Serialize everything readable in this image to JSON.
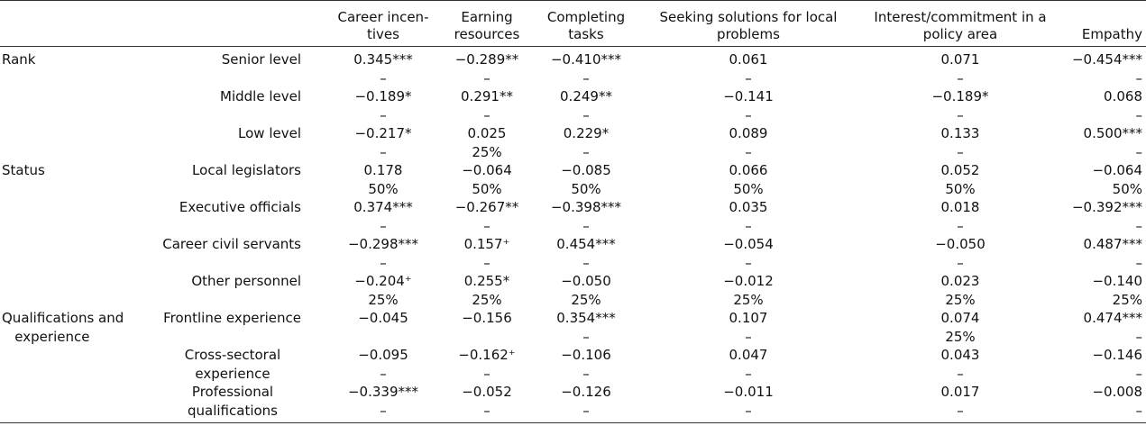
{
  "table": {
    "headers": [
      "",
      "",
      "Career incen-\ntives",
      "Earning\nresources",
      "Completing\ntasks",
      "Seeking solutions for local\nproblems",
      "Interest/commitment in a\npolicy area",
      "Empathy"
    ],
    "groups": [
      {
        "label": "Rank",
        "rows": [
          {
            "label": "Senior level",
            "cells": [
              [
                "0.345***",
                "–"
              ],
              [
                "−0.289**",
                "–"
              ],
              [
                "−0.410***",
                "–"
              ],
              [
                "0.061",
                "–"
              ],
              [
                "0.071",
                "–"
              ],
              [
                "−0.454***",
                "–"
              ]
            ]
          },
          {
            "label": "Middle level",
            "cells": [
              [
                "−0.189*",
                "–"
              ],
              [
                "0.291**",
                "–"
              ],
              [
                "0.249**",
                "–"
              ],
              [
                "−0.141",
                "–"
              ],
              [
                "−0.189*",
                "–"
              ],
              [
                "0.068",
                "–"
              ]
            ]
          },
          {
            "label": "Low level",
            "cells": [
              [
                "−0.217*",
                "–"
              ],
              [
                "0.025",
                "25%"
              ],
              [
                "0.229*",
                "–"
              ],
              [
                "0.089",
                "–"
              ],
              [
                "0.133",
                "–"
              ],
              [
                "0.500***",
                "–"
              ]
            ]
          }
        ]
      },
      {
        "label": "Status",
        "rows": [
          {
            "label": "Local legislators",
            "cells": [
              [
                "0.178",
                "50%"
              ],
              [
                "−0.064",
                "50%"
              ],
              [
                "−0.085",
                "50%"
              ],
              [
                "0.066",
                "50%"
              ],
              [
                "0.052",
                "50%"
              ],
              [
                "−0.064",
                "50%"
              ]
            ]
          },
          {
            "label": "Executive officials",
            "cells": [
              [
                "0.374***",
                "–"
              ],
              [
                "−0.267**",
                "–"
              ],
              [
                "−0.398***",
                "–"
              ],
              [
                "0.035",
                "–"
              ],
              [
                "0.018",
                "–"
              ],
              [
                "−0.392***",
                "–"
              ]
            ]
          },
          {
            "label": "Career civil servants",
            "cells": [
              [
                "−0.298***",
                "–"
              ],
              [
                "0.157⁺",
                "–"
              ],
              [
                "0.454***",
                "–"
              ],
              [
                "−0.054",
                "–"
              ],
              [
                "−0.050",
                "–"
              ],
              [
                "0.487***",
                "–"
              ]
            ]
          },
          {
            "label": "Other personnel",
            "cells": [
              [
                "−0.204⁺",
                "25%"
              ],
              [
                "0.255*",
                "25%"
              ],
              [
                "−0.050",
                "25%"
              ],
              [
                "−0.012",
                "25%"
              ],
              [
                "0.023",
                "25%"
              ],
              [
                "−0.140",
                "25%"
              ]
            ]
          }
        ]
      },
      {
        "label": "Qualifications and\n   experience",
        "rows": [
          {
            "label": "Frontline experience",
            "cells": [
              [
                "−0.045",
                ""
              ],
              [
                "−0.156",
                ""
              ],
              [
                "0.354***",
                "–"
              ],
              [
                "0.107",
                "–"
              ],
              [
                "0.074",
                "25%"
              ],
              [
                "0.474***",
                "–"
              ]
            ]
          },
          {
            "label": "Cross-sectoral\nexperience",
            "cells": [
              [
                "−0.095",
                "–"
              ],
              [
                "−0.162⁺",
                "–"
              ],
              [
                "−0.106",
                "–"
              ],
              [
                "0.047",
                "–"
              ],
              [
                "0.043",
                "–"
              ],
              [
                "−0.146",
                "–"
              ]
            ]
          },
          {
            "label": "Professional\nqualifications",
            "cells": [
              [
                "−0.339***",
                "–"
              ],
              [
                "−0.052",
                "–"
              ],
              [
                "−0.126",
                "–"
              ],
              [
                "−0.011",
                "–"
              ],
              [
                "0.017",
                "–"
              ],
              [
                "−0.008",
                "–"
              ]
            ]
          }
        ]
      }
    ]
  }
}
